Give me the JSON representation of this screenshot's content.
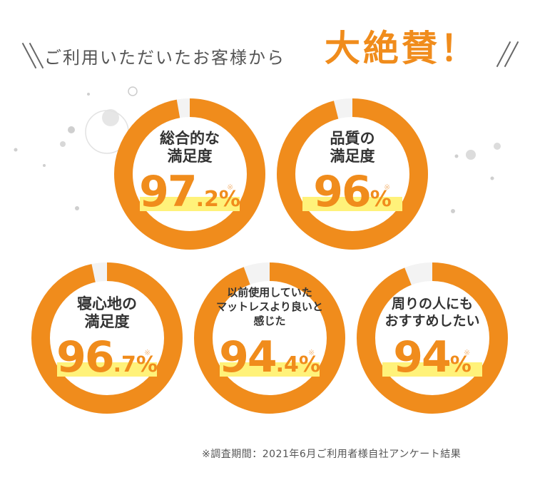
{
  "headline": {
    "lead": "ご利用いただいたお客様から",
    "emphasis": "大絶賛！"
  },
  "colors": {
    "accent": "#f08c1c",
    "highlight": "#fff27a",
    "track": "#f3f3f3"
  },
  "stats": [
    {
      "label": "総合的な\n満足度",
      "value_main": "97",
      "value_decimal": ".2",
      "unit": "%",
      "mark": "※",
      "percent": 97.2
    },
    {
      "label": "品質の\n満足度",
      "value_main": "96",
      "value_decimal": "",
      "unit": "%",
      "mark": "※",
      "percent": 96
    },
    {
      "label": "寝心地の\n満足度",
      "value_main": "96",
      "value_decimal": ".7",
      "unit": "%",
      "mark": "※",
      "percent": 96.7
    },
    {
      "label": "以前使用していた\nマットレスより良いと\n感じた",
      "value_main": "94",
      "value_decimal": ".4",
      "unit": "%",
      "mark": "※",
      "percent": 94.4
    },
    {
      "label": "周りの人にも\nおすすめしたい",
      "value_main": "94",
      "value_decimal": "",
      "unit": "%",
      "mark": "※",
      "percent": 94
    }
  ],
  "footnote": "※調査期間：2021年6月ご利用者様自社アンケート結果"
}
